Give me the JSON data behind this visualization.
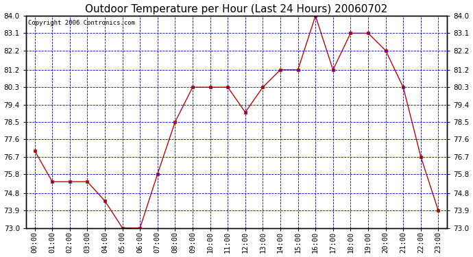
{
  "title": "Outdoor Temperature per Hour (Last 24 Hours) 20060702",
  "copyright_text": "Copyright 2006 Contronics.com",
  "hours": [
    "00:00",
    "01:00",
    "02:00",
    "03:00",
    "04:00",
    "05:00",
    "06:00",
    "07:00",
    "08:00",
    "09:00",
    "10:00",
    "11:00",
    "12:00",
    "13:00",
    "14:00",
    "15:00",
    "16:00",
    "17:00",
    "18:00",
    "19:00",
    "20:00",
    "21:00",
    "22:00",
    "23:00"
  ],
  "temps": [
    77.0,
    75.4,
    75.4,
    75.4,
    74.4,
    73.0,
    73.0,
    75.8,
    78.5,
    80.3,
    80.3,
    80.3,
    79.0,
    80.3,
    81.2,
    81.2,
    84.0,
    81.2,
    83.1,
    83.1,
    82.2,
    80.3,
    76.7,
    73.9
  ],
  "ylim_min": 73.0,
  "ylim_max": 84.0,
  "yticks": [
    73.0,
    73.9,
    74.8,
    75.8,
    76.7,
    77.6,
    78.5,
    79.4,
    80.3,
    81.2,
    82.2,
    83.1,
    84.0
  ],
  "line_color": "#cc0000",
  "marker_color": "#cc0000",
  "grid_color": "#0000bb",
  "background_color": "#ffffff",
  "title_fontsize": 11,
  "copyright_fontsize": 6.5,
  "tick_fontsize": 7.5
}
